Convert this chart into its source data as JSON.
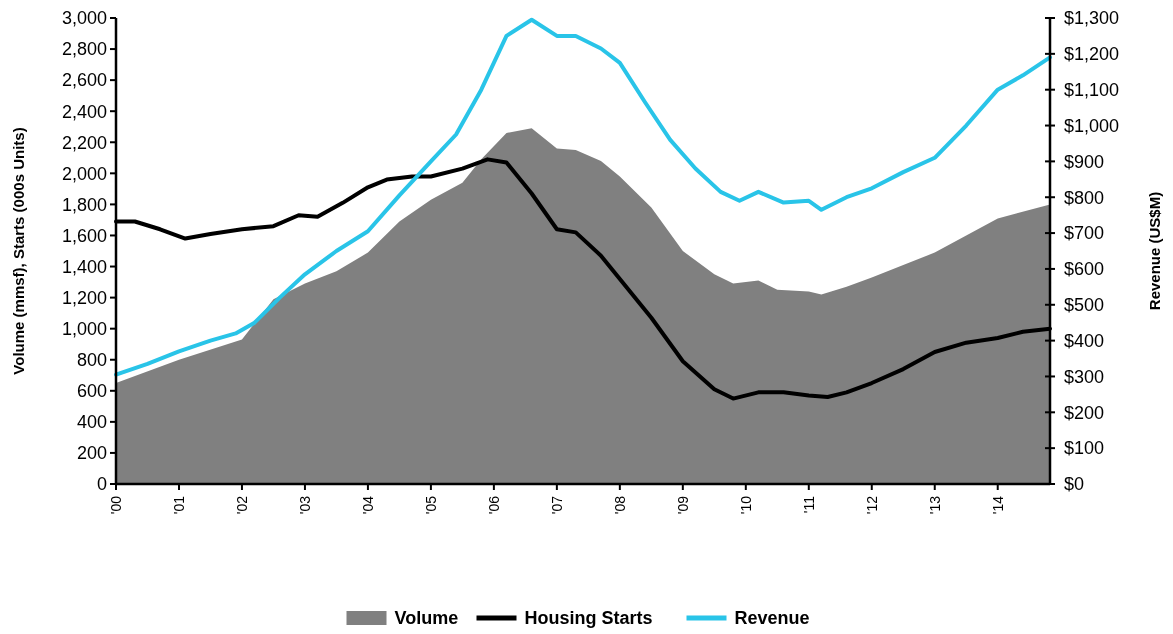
{
  "chart_data": {
    "type": "line",
    "ylabel": "Volume (mmsf),  Starts (000s Units)",
    "y2label": "Revenue (US$M)",
    "xlim": [
      2000,
      2014.83
    ],
    "xticks": [
      {
        "value": 2000,
        "label": "'00"
      },
      {
        "value": 2001,
        "label": "'01"
      },
      {
        "value": 2002,
        "label": "'02"
      },
      {
        "value": 2003,
        "label": "'03"
      },
      {
        "value": 2004,
        "label": "'04"
      },
      {
        "value": 2005,
        "label": "'05"
      },
      {
        "value": 2006,
        "label": "'06"
      },
      {
        "value": 2007,
        "label": "'07"
      },
      {
        "value": 2008,
        "label": "'08"
      },
      {
        "value": 2009,
        "label": "'09"
      },
      {
        "value": 2010,
        "label": "'10"
      },
      {
        "value": 2011,
        "label": "'11"
      },
      {
        "value": 2012,
        "label": "'12"
      },
      {
        "value": 2013,
        "label": "'13"
      },
      {
        "value": 2014,
        "label": "'14"
      }
    ],
    "ylim": [
      0,
      3000
    ],
    "yticks": [
      0,
      200,
      400,
      600,
      800,
      {
        "value": 1000,
        "label": "1,000"
      },
      {
        "value": 1200,
        "label": "1,200"
      },
      {
        "value": 1400,
        "label": "1,400"
      },
      {
        "value": 1600,
        "label": "1,600"
      },
      {
        "value": 1800,
        "label": "1,800"
      },
      {
        "value": 2000,
        "label": "2,000"
      },
      {
        "value": 2200,
        "label": "2,200"
      },
      {
        "value": 2400,
        "label": "2,400"
      },
      {
        "value": 2600,
        "label": "2,600"
      },
      {
        "value": 2800,
        "label": "2,800"
      },
      {
        "value": 3000,
        "label": "3,000"
      }
    ],
    "y2lim": [
      0,
      1300
    ],
    "y2ticks": [
      {
        "value": 0,
        "label": "$0"
      },
      {
        "value": 100,
        "label": "$100"
      },
      {
        "value": 200,
        "label": "$200"
      },
      {
        "value": 300,
        "label": "$300"
      },
      {
        "value": 400,
        "label": "$400"
      },
      {
        "value": 500,
        "label": "$500"
      },
      {
        "value": 600,
        "label": "$600"
      },
      {
        "value": 700,
        "label": "$700"
      },
      {
        "value": 800,
        "label": "$800"
      },
      {
        "value": 900,
        "label": "$900"
      },
      {
        "value": 1000,
        "label": "$1,000"
      },
      {
        "value": 1100,
        "label": "$1,100"
      },
      {
        "value": 1200,
        "label": "$1,200"
      },
      {
        "value": 1300,
        "label": "$1,300"
      }
    ],
    "legend": "bottom",
    "grid": false,
    "series": [
      {
        "name": "Volume",
        "type": "area",
        "color": "#808080",
        "x": [
          2000,
          2001,
          2002,
          2002.5,
          2003,
          2003.5,
          2004,
          2004.5,
          2005,
          2005.5,
          2005.8,
          2006.2,
          2006.6,
          2007,
          2007.3,
          2007.7,
          2008,
          2008.5,
          2009,
          2009.5,
          2009.8,
          2010.2,
          2010.5,
          2011,
          2011.2,
          2011.6,
          2012,
          2012.5,
          2013,
          2013.5,
          2014,
          2014.83
        ],
        "values": [
          650,
          800,
          930,
          1190,
          1290,
          1370,
          1490,
          1690,
          1830,
          1940,
          2090,
          2260,
          2290,
          2160,
          2150,
          2080,
          1980,
          1780,
          1500,
          1350,
          1290,
          1310,
          1250,
          1240,
          1220,
          1270,
          1330,
          1410,
          1490,
          1600,
          1710,
          1800
        ]
      },
      {
        "name": "Housing Starts",
        "color": "#000000",
        "x": [
          2000,
          2000.3,
          2000.7,
          2001.1,
          2001.5,
          2002,
          2002.5,
          2002.9,
          2003.2,
          2003.6,
          2004,
          2004.3,
          2004.7,
          2005,
          2005.5,
          2005.9,
          2006.2,
          2006.6,
          2007,
          2007.3,
          2007.7,
          2008,
          2008.5,
          2009,
          2009.5,
          2009.8,
          2010.2,
          2010.6,
          2011,
          2011.3,
          2011.6,
          2012,
          2012.5,
          2013,
          2013.5,
          2014,
          2014.4,
          2014.83
        ],
        "values": [
          1690,
          1690,
          1640,
          1580,
          1610,
          1640,
          1660,
          1730,
          1720,
          1810,
          1910,
          1960,
          1980,
          1980,
          2030,
          2090,
          2070,
          1870,
          1640,
          1620,
          1470,
          1320,
          1070,
          790,
          610,
          550,
          590,
          590,
          570,
          560,
          590,
          650,
          740,
          850,
          910,
          940,
          980,
          1000
        ]
      },
      {
        "name": "Revenue",
        "axis": "y2",
        "color": "#29c4e8",
        "x": [
          2000,
          2000.5,
          2001,
          2001.5,
          2001.9,
          2002.2,
          2002.6,
          2003,
          2003.5,
          2004,
          2004.5,
          2005,
          2005.4,
          2005.8,
          2006.2,
          2006.6,
          2007,
          2007.3,
          2007.7,
          2008,
          2008.4,
          2008.8,
          2009.2,
          2009.6,
          2009.9,
          2010.2,
          2010.6,
          2011,
          2011.2,
          2011.6,
          2012,
          2012.5,
          2013,
          2013.5,
          2014,
          2014.4,
          2014.83
        ],
        "values": [
          305,
          335,
          370,
          400,
          420,
          450,
          520,
          585,
          650,
          705,
          805,
          900,
          975,
          1100,
          1250,
          1295,
          1250,
          1250,
          1215,
          1175,
          1065,
          960,
          880,
          815,
          790,
          815,
          785,
          790,
          765,
          800,
          825,
          870,
          910,
          1000,
          1100,
          1140,
          1190
        ]
      }
    ]
  }
}
